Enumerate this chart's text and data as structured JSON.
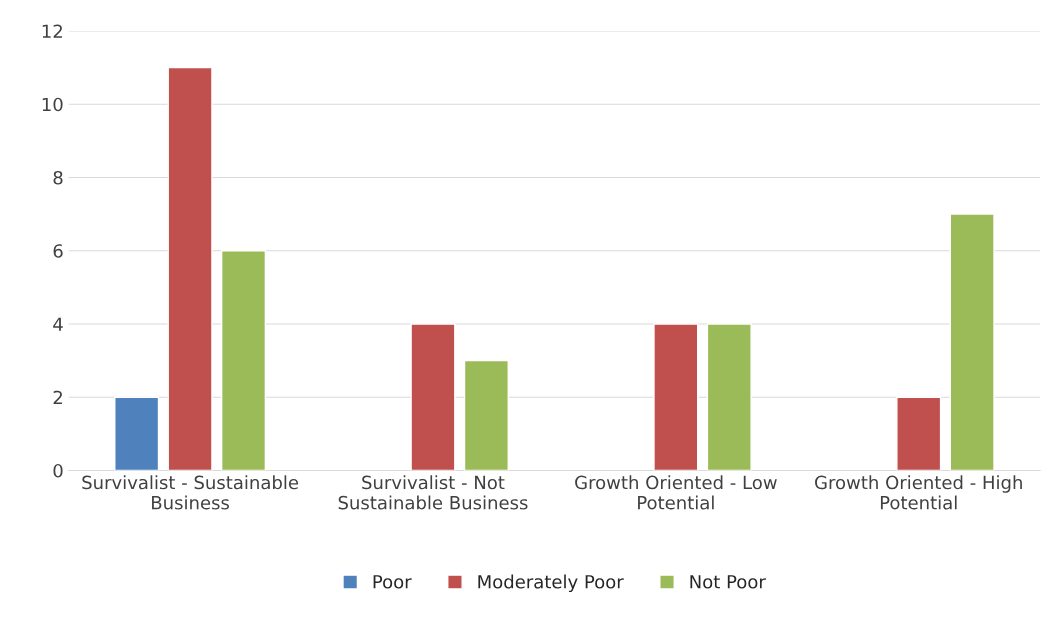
{
  "chart_data": {
    "type": "bar",
    "categories": [
      "Survivalist - Sustainable\nBusiness",
      "Survivalist - Not\nSustainable Business",
      "Growth Oriented - Low\nPotential",
      "Growth Oriented - High\nPotential"
    ],
    "series": [
      {
        "name": "Poor",
        "color": "#4f81bd",
        "values": [
          2,
          null,
          null,
          null
        ]
      },
      {
        "name": "Moderately Poor",
        "color": "#c0504d",
        "values": [
          11,
          4,
          4,
          2
        ]
      },
      {
        "name": "Not Poor",
        "color": "#9bbb59",
        "values": [
          6,
          3,
          4,
          7
        ]
      }
    ],
    "ylim": [
      0,
      12
    ],
    "yticks": [
      0,
      2,
      4,
      6,
      8,
      10,
      12
    ],
    "grid": "y",
    "legend": "bottom"
  }
}
